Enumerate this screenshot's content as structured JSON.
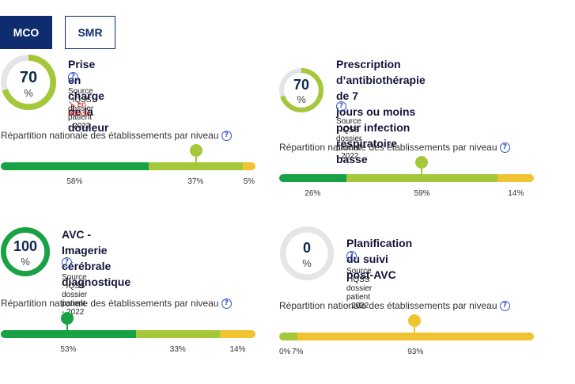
{
  "tabs": [
    {
      "label": "MCO",
      "active": true
    },
    {
      "label": "SMR",
      "active": false
    }
  ],
  "colors": {
    "green": "#18a244",
    "light_green": "#a5c83b",
    "yellow": "#f0c330",
    "track": "#e5e5e5"
  },
  "indicators": [
    {
      "value": "70",
      "unit": "%",
      "progress": 70,
      "title_lines": [
        "Prise en charge de la douleur"
      ],
      "source": "Source : IQSS dossier patient - 2022",
      "trend": "en baisse",
      "repartition_label": "Répartition nationale des établissements par niveau",
      "segments": [
        58,
        37,
        5
      ],
      "segment_labels": [
        "58%",
        "37%",
        "5%"
      ],
      "marker_level": "light_green"
    },
    {
      "value": "70",
      "unit": "%",
      "progress": 70,
      "title_lines": [
        "Prescription d’antibiothérapie de 7",
        "jours ou moins pour infection",
        "respiratoire basse"
      ],
      "source": "Source : IQSS dossier patient - 2022",
      "repartition_label": "Répartition nationale des établissements par niveau",
      "segments": [
        26,
        59,
        14
      ],
      "segment_labels": [
        "26%",
        "59%",
        "14%"
      ],
      "marker_level": "light_green"
    },
    {
      "value": "100",
      "unit": "%",
      "progress": 100,
      "title_lines": [
        "AVC - Imagerie cérébrale",
        "diagnostique"
      ],
      "source": "Source : IQSS dossier patient - 2022",
      "repartition_label": "Répartition nationale des établissements par niveau",
      "segments": [
        53,
        33,
        14
      ],
      "segment_labels": [
        "53%",
        "33%",
        "14%"
      ],
      "marker_level": "green"
    },
    {
      "value": "0",
      "unit": "%",
      "progress": 0,
      "title_lines": [
        "Planification du suivi post-AVC"
      ],
      "source": "Source : IQSS dossier patient - 2022",
      "repartition_label": "Répartition nationale des établissements par niveau",
      "segments": [
        0,
        7,
        93
      ],
      "segment_labels": [
        "0%",
        "7%",
        "93%"
      ],
      "marker_level": "yellow"
    }
  ],
  "help_icon": "question-circle-icon",
  "trend_icon": "arrow-down-right-icon"
}
